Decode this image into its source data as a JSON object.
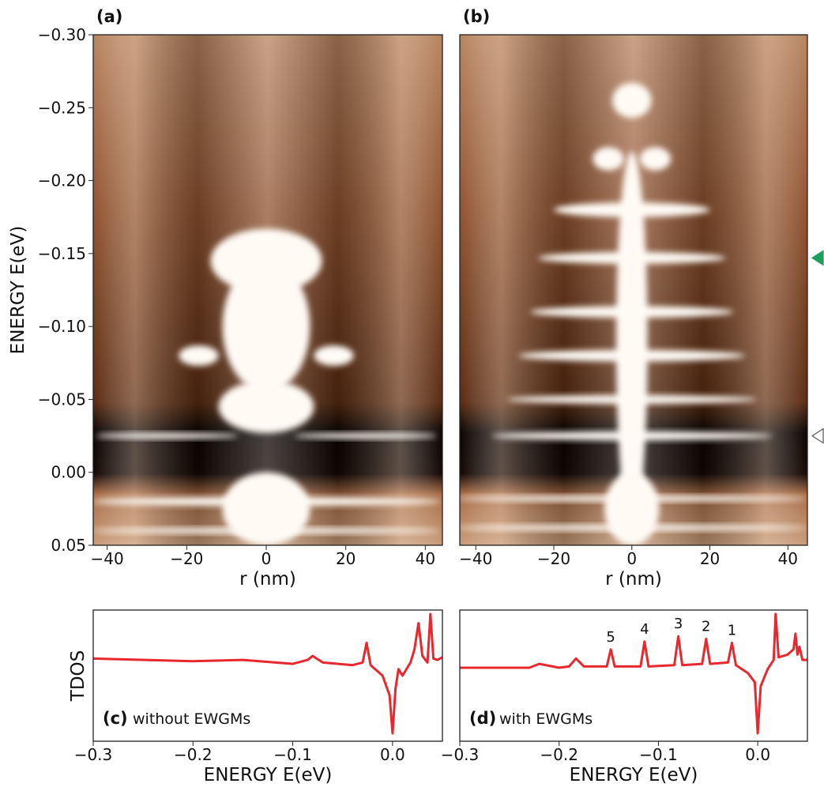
{
  "chart_data": [
    {
      "type": "heatmap",
      "title": "(a)",
      "xlabel": "r (nm)",
      "ylabel": "ENERGY E(eV)",
      "xlim": [
        -43.5,
        44.3
      ],
      "ylim": [
        0.05,
        -0.3
      ],
      "xticks": [
        {
          "value": -40,
          "label": "−40"
        },
        {
          "value": -20,
          "label": "−20"
        },
        0,
        20,
        40
      ],
      "yticks": [
        {
          "value": -0.3,
          "label": "−0.30"
        },
        {
          "value": -0.25,
          "label": "−0.25"
        },
        {
          "value": -0.2,
          "label": "−0.20"
        },
        {
          "value": -0.15,
          "label": "−0.15"
        },
        {
          "value": -0.1,
          "label": "−0.10"
        },
        {
          "value": -0.05,
          "label": "−0.05"
        },
        {
          "value": 0.0,
          "label": "0.00"
        },
        {
          "value": 0.05,
          "label": "0.05"
        }
      ],
      "spots": [
        {
          "r": 0,
          "E": -0.1,
          "dr": 11,
          "dE": 0.045
        },
        {
          "r": 0,
          "E": -0.145,
          "dr": 14,
          "dE": 0.022
        },
        {
          "r": -17,
          "E": -0.08,
          "dr": 5,
          "dE": 0.007
        },
        {
          "r": 17,
          "E": -0.08,
          "dr": 5,
          "dE": 0.007
        },
        {
          "r": 0,
          "E": -0.045,
          "dr": 12,
          "dE": 0.018
        },
        {
          "r": -25,
          "E": -0.025,
          "dr": 18,
          "dE": 0.002
        },
        {
          "r": 25,
          "E": -0.025,
          "dr": 18,
          "dE": 0.002
        },
        {
          "r": 0,
          "E": 0.025,
          "dr": 11,
          "dE": 0.025
        },
        {
          "r": 0,
          "E": 0.02,
          "dr": 44,
          "dE": 0.003
        },
        {
          "r": 0,
          "E": 0.04,
          "dr": 44,
          "dE": 0.002
        }
      ]
    },
    {
      "type": "heatmap",
      "title": "(b)",
      "xlabel": "r (nm)",
      "xlim": [
        -44.1,
        45
      ],
      "ylim": [
        0.05,
        -0.3
      ],
      "xticks": [
        {
          "value": -40,
          "label": "−40"
        },
        {
          "value": -20,
          "label": "−20"
        },
        0,
        20,
        40
      ],
      "spots": [
        {
          "r": 0,
          "E": -0.09,
          "dr": 4,
          "dE": 0.13
        },
        {
          "r": 0,
          "E": -0.255,
          "dr": 5,
          "dE": 0.012
        },
        {
          "r": -6,
          "E": -0.215,
          "dr": 4,
          "dE": 0.008
        },
        {
          "r": 6,
          "E": -0.215,
          "dr": 4,
          "dE": 0.008
        },
        {
          "r": 0,
          "E": -0.18,
          "dr": 20,
          "dE": 0.005
        },
        {
          "r": 0,
          "E": -0.147,
          "dr": 24,
          "dE": 0.004
        },
        {
          "r": 0,
          "E": -0.11,
          "dr": 26,
          "dE": 0.004
        },
        {
          "r": 0,
          "E": -0.08,
          "dr": 29,
          "dE": 0.004
        },
        {
          "r": 0,
          "E": -0.05,
          "dr": 32,
          "dE": 0.003
        },
        {
          "r": 0,
          "E": -0.025,
          "dr": 36,
          "dE": 0.003
        },
        {
          "r": 0,
          "E": 0.025,
          "dr": 7,
          "dE": 0.025
        },
        {
          "r": 0,
          "E": 0.018,
          "dr": 45,
          "dE": 0.002
        },
        {
          "r": 0,
          "E": 0.038,
          "dr": 45,
          "dE": 0.002
        }
      ],
      "markers": [
        {
          "value": -0.147,
          "color": "#1aa05a",
          "filled": true
        },
        {
          "value": -0.025,
          "color": "#555555",
          "filled": false
        }
      ]
    },
    {
      "type": "line",
      "title": "(c)",
      "note": "without EWGMs",
      "xlabel": "ENERGY E(eV)",
      "ylabel": "TDOS",
      "xlim": [
        -0.3,
        0.05
      ],
      "ylim": [
        0,
        1
      ],
      "xticks": [
        {
          "value": -0.3,
          "label": "−0.3"
        },
        {
          "value": -0.2,
          "label": "−0.2"
        },
        {
          "value": -0.1,
          "label": "−0.1"
        },
        {
          "value": 0.0,
          "label": "0.0"
        }
      ],
      "color": "#e8282e",
      "x": [
        -0.3,
        -0.2,
        -0.15,
        -0.1,
        -0.085,
        -0.08,
        -0.07,
        -0.04,
        -0.03,
        -0.026,
        -0.022,
        -0.01,
        -0.003,
        0.0,
        0.003,
        0.006,
        0.01,
        0.018,
        0.022,
        0.026,
        0.03,
        0.035,
        0.038,
        0.041,
        0.045,
        0.05
      ],
      "values": [
        0.63,
        0.61,
        0.62,
        0.59,
        0.62,
        0.65,
        0.6,
        0.58,
        0.6,
        0.75,
        0.58,
        0.5,
        0.35,
        0.06,
        0.4,
        0.55,
        0.5,
        0.6,
        0.7,
        0.9,
        0.65,
        0.6,
        0.97,
        0.63,
        0.62,
        0.64
      ]
    },
    {
      "type": "line",
      "title": "(d)",
      "note": "with EWGMs",
      "xlabel": "ENERGY E(eV)",
      "xlim": [
        -0.3,
        0.05
      ],
      "ylim": [
        0,
        1
      ],
      "xticks": [
        {
          "value": -0.3,
          "label": "−0.3"
        },
        {
          "value": -0.2,
          "label": "−0.2"
        },
        {
          "value": -0.1,
          "label": "−0.1"
        },
        {
          "value": 0.0,
          "label": "0.0"
        }
      ],
      "color": "#e8282e",
      "x": [
        -0.3,
        -0.23,
        -0.22,
        -0.2,
        -0.19,
        -0.183,
        -0.175,
        -0.152,
        -0.148,
        -0.144,
        -0.118,
        -0.114,
        -0.11,
        -0.084,
        -0.08,
        -0.076,
        -0.056,
        -0.052,
        -0.048,
        -0.03,
        -0.026,
        -0.022,
        -0.01,
        -0.003,
        0.0,
        0.003,
        0.01,
        0.016,
        0.018,
        0.021,
        0.03,
        0.036,
        0.038,
        0.04,
        0.042,
        0.045,
        0.05
      ],
      "values": [
        0.56,
        0.56,
        0.59,
        0.56,
        0.57,
        0.63,
        0.57,
        0.57,
        0.7,
        0.57,
        0.57,
        0.76,
        0.57,
        0.58,
        0.8,
        0.58,
        0.59,
        0.78,
        0.59,
        0.6,
        0.75,
        0.58,
        0.52,
        0.45,
        0.06,
        0.42,
        0.55,
        0.62,
        0.97,
        0.64,
        0.66,
        0.7,
        0.82,
        0.66,
        0.72,
        0.62,
        0.62
      ],
      "annotations": [
        {
          "text": "5",
          "x": -0.148,
          "y": 0.7
        },
        {
          "text": "4",
          "x": -0.114,
          "y": 0.76
        },
        {
          "text": "3",
          "x": -0.08,
          "y": 0.8
        },
        {
          "text": "2",
          "x": -0.052,
          "y": 0.78
        },
        {
          "text": "1",
          "x": -0.026,
          "y": 0.75
        }
      ]
    }
  ]
}
